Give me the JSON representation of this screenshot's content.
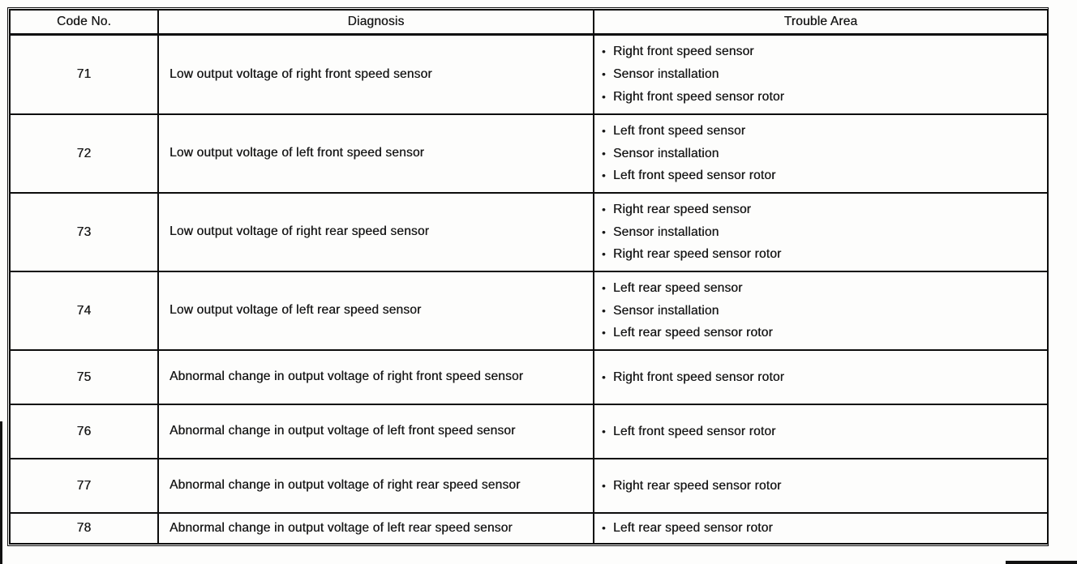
{
  "table": {
    "bullet_char": "•",
    "headers": [
      "Code No.",
      "Diagnosis",
      "Trouble Area"
    ],
    "rows": [
      {
        "code": "71",
        "diagnosis": "Low output voltage of right front speed sensor",
        "trouble": [
          "Right front speed sensor",
          "Sensor installation",
          "Right front speed sensor rotor"
        ]
      },
      {
        "code": "72",
        "diagnosis": "Low output voltage of left front speed sensor",
        "trouble": [
          "Left front speed sensor",
          "Sensor installation",
          "Left front speed sensor rotor"
        ]
      },
      {
        "code": "73",
        "diagnosis": "Low output voltage of right rear speed sensor",
        "trouble": [
          "Right rear speed sensor",
          "Sensor installation",
          "Right rear speed sensor rotor"
        ]
      },
      {
        "code": "74",
        "diagnosis": "Low output voltage of left rear speed sensor",
        "trouble": [
          "Left rear speed sensor",
          "Sensor installation",
          "Left rear speed sensor rotor"
        ]
      },
      {
        "code": "75",
        "diagnosis": "Abnormal change in output voltage of right front speed sensor",
        "trouble": [
          "Right front speed sensor rotor"
        ]
      },
      {
        "code": "76",
        "diagnosis": "Abnormal change in output voltage of left front speed sensor",
        "trouble": [
          "Left front speed sensor rotor"
        ]
      },
      {
        "code": "77",
        "diagnosis": "Abnormal change in output voltage of right rear speed sensor",
        "trouble": [
          "Right rear speed sensor rotor"
        ]
      },
      {
        "code": "78",
        "diagnosis": "Abnormal change in output voltage of left rear speed sensor",
        "trouble": [
          "Left rear speed sensor rotor"
        ]
      }
    ]
  }
}
